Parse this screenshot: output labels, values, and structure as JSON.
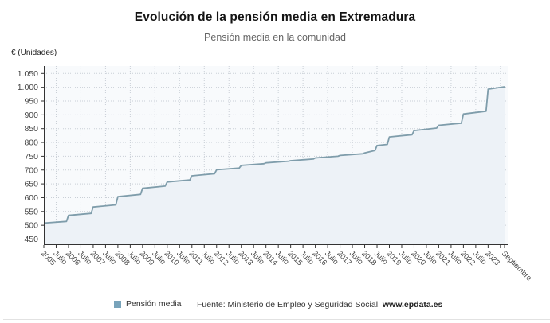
{
  "header": {
    "title": "Evolución de la pensión media en Extremadura",
    "subtitle": "Pensión media en la comunidad"
  },
  "y_axis_unit_label": "€ (Unidades)",
  "legend": {
    "label": "Pensión media",
    "swatch_color": "#78a3ba"
  },
  "source": {
    "prefix": "Fuente: Ministerio de Empleo y Seguridad Social, ",
    "site": "www.epdata.es"
  },
  "chart_data": {
    "type": "area",
    "title": "Evolución de la pensión media en Extremadura",
    "subtitle": "Pensión media en la comunidad",
    "xlabel": "",
    "ylabel": "€ (Unidades)",
    "x_range": [
      "enero 2005",
      "septiembre 2023"
    ],
    "ylim": [
      431,
      1077
    ],
    "grid": true,
    "legend_position": "bottom",
    "colors": {
      "line": "#7f9dab",
      "area_fill": "#edf2f7",
      "plot_bg": "#f8fafc",
      "grid": "#c9cfd6",
      "axis": "#333333",
      "tick_label": "#444444"
    },
    "y_ticks": [
      {
        "v": 450,
        "label": "450"
      },
      {
        "v": 500,
        "label": "500"
      },
      {
        "v": 550,
        "label": "550"
      },
      {
        "v": 600,
        "label": "600"
      },
      {
        "v": 650,
        "label": "650"
      },
      {
        "v": 700,
        "label": "700"
      },
      {
        "v": 750,
        "label": "750"
      },
      {
        "v": 800,
        "label": "800"
      },
      {
        "v": 850,
        "label": "850"
      },
      {
        "v": 900,
        "label": "900"
      },
      {
        "v": 950,
        "label": "950"
      },
      {
        "v": 1000,
        "label": "1.000"
      },
      {
        "v": 1050,
        "label": "1.050"
      }
    ],
    "x_ticks": [
      {
        "m": 0,
        "label": "2005"
      },
      {
        "m": 6,
        "label": "Julio"
      },
      {
        "m": 12,
        "label": "2006"
      },
      {
        "m": 18,
        "label": "Julio"
      },
      {
        "m": 24,
        "label": "2007"
      },
      {
        "m": 30,
        "label": "Julio"
      },
      {
        "m": 36,
        "label": "2008"
      },
      {
        "m": 42,
        "label": "Julio"
      },
      {
        "m": 48,
        "label": "2009"
      },
      {
        "m": 54,
        "label": "Julio"
      },
      {
        "m": 60,
        "label": "2010"
      },
      {
        "m": 66,
        "label": "Julio"
      },
      {
        "m": 72,
        "label": "2011"
      },
      {
        "m": 78,
        "label": "Julio"
      },
      {
        "m": 84,
        "label": "2012"
      },
      {
        "m": 90,
        "label": "Julio"
      },
      {
        "m": 96,
        "label": "2013"
      },
      {
        "m": 102,
        "label": "Julio"
      },
      {
        "m": 108,
        "label": "2014"
      },
      {
        "m": 114,
        "label": "Julio"
      },
      {
        "m": 120,
        "label": "2015"
      },
      {
        "m": 126,
        "label": "Julio"
      },
      {
        "m": 132,
        "label": "2016"
      },
      {
        "m": 138,
        "label": "Julio"
      },
      {
        "m": 144,
        "label": "2017"
      },
      {
        "m": 150,
        "label": "Julio"
      },
      {
        "m": 156,
        "label": "2018"
      },
      {
        "m": 162,
        "label": "Julio"
      },
      {
        "m": 168,
        "label": "2019"
      },
      {
        "m": 174,
        "label": "Julio"
      },
      {
        "m": 180,
        "label": "2020"
      },
      {
        "m": 186,
        "label": "Julio"
      },
      {
        "m": 192,
        "label": "2021"
      },
      {
        "m": 198,
        "label": "Julio"
      },
      {
        "m": 204,
        "label": "2022"
      },
      {
        "m": 210,
        "label": "Julio"
      },
      {
        "m": 216,
        "label": "2023"
      },
      {
        "m": 224,
        "label": "Septiembre"
      }
    ],
    "v_grid_months": [
      6,
      18,
      30,
      42,
      54,
      66,
      78,
      90,
      102,
      114,
      126,
      138,
      150,
      162,
      174,
      186,
      198,
      210,
      222
    ],
    "series": [
      {
        "name": "Pensión media",
        "unit": "€",
        "points_format": "[month_index_from_2005_01, value_eur]",
        "points": [
          [
            0,
            508
          ],
          [
            11,
            514
          ],
          [
            12,
            536
          ],
          [
            23,
            543
          ],
          [
            24,
            566
          ],
          [
            35,
            574
          ],
          [
            36,
            604
          ],
          [
            47,
            612
          ],
          [
            48,
            634
          ],
          [
            59,
            642
          ],
          [
            60,
            657
          ],
          [
            71,
            664
          ],
          [
            72,
            679
          ],
          [
            83,
            687
          ],
          [
            84,
            701
          ],
          [
            95,
            707
          ],
          [
            96,
            717
          ],
          [
            107,
            723
          ],
          [
            108,
            726
          ],
          [
            119,
            732
          ],
          [
            120,
            734
          ],
          [
            131,
            740
          ],
          [
            132,
            744
          ],
          [
            143,
            750
          ],
          [
            144,
            753
          ],
          [
            155,
            759
          ],
          [
            156,
            762
          ],
          [
            161,
            771
          ],
          [
            162,
            789
          ],
          [
            167,
            793
          ],
          [
            168,
            820
          ],
          [
            179,
            828
          ],
          [
            180,
            843
          ],
          [
            191,
            852
          ],
          [
            192,
            862
          ],
          [
            203,
            870
          ],
          [
            204,
            903
          ],
          [
            215,
            913
          ],
          [
            216,
            993
          ],
          [
            224,
            1002
          ]
        ]
      }
    ]
  }
}
